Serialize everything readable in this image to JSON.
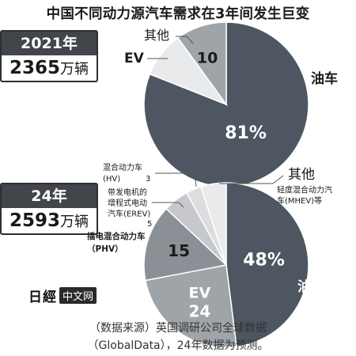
{
  "title": "中国不同动力源汽车需求在3年间发生巨变",
  "colors": {
    "oil": "#4d5661",
    "ev": "#9fa4a9",
    "other": "#e9eaeb",
    "phv": "#8b9096",
    "hv": "#dcdddf",
    "erev": "#c6c8cb",
    "year_box": "#42464b"
  },
  "chart_data": [
    {
      "type": "pie",
      "year_label": "2021年",
      "total_number": "2365",
      "total_unit": "万辆",
      "slices": [
        {
          "key": "oil",
          "label": "油车",
          "value": 81,
          "value_label": "81%"
        },
        {
          "key": "other",
          "label": "其他",
          "value": 9,
          "value_label": ""
        },
        {
          "key": "ev",
          "label": "EV",
          "value": 10,
          "value_label": "10"
        }
      ]
    },
    {
      "type": "pie",
      "year_label": "24年",
      "total_number": "2593",
      "total_unit": "万辆",
      "slices": [
        {
          "key": "oil",
          "label": "油车",
          "value": 48,
          "value_label": "48%"
        },
        {
          "key": "ev",
          "label": "EV",
          "value": 24,
          "value_label": "24"
        },
        {
          "key": "phv",
          "label": "插电混合动力车\n（PHV）",
          "value": 15,
          "value_label": "15"
        },
        {
          "key": "erev",
          "label": "带发电机的\n增程式电动\n汽车(EREV)",
          "value": 5,
          "value_label": "5"
        },
        {
          "key": "hv",
          "label": "混合动力车\n(HV)",
          "value": 3,
          "value_label": "3"
        },
        {
          "key": "other",
          "label": "其他",
          "value": 5,
          "value_label": "",
          "sublabel": "轻度混合动力汽\n车(MHEV)等"
        }
      ]
    }
  ],
  "logo": {
    "nikkei": "日經",
    "chinese": "中文网"
  },
  "source": {
    "line1": "（数据来源）英国调研公司全球数据",
    "line2": "（GlobalData），24年数据为预测。"
  }
}
